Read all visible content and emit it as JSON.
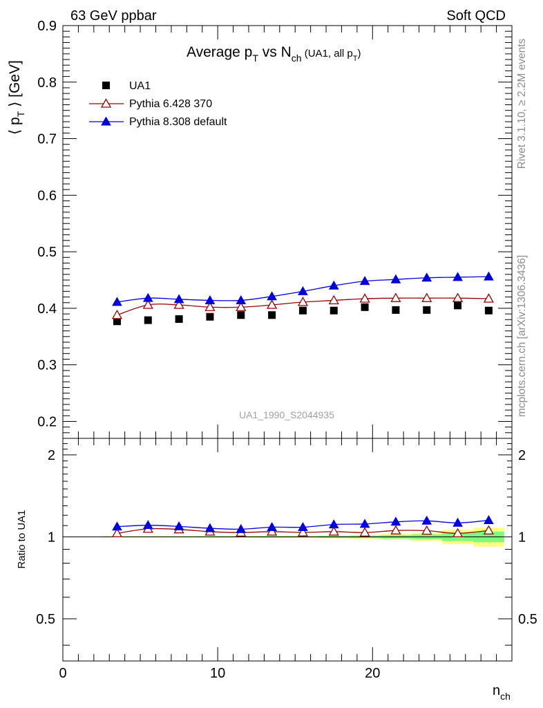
{
  "header": {
    "left": "63 GeV ppbar",
    "right": "Soft QCD"
  },
  "side_labels": {
    "rivet": "Rivet 3.1.10, ≥ 2.2M events",
    "mcplots": "mcplots.cern.ch [arXiv:1306.3436]"
  },
  "watermark": "UA1_1990_S2044935",
  "chart_data": [
    {
      "type": "line",
      "title": {
        "main": "Average p",
        "main_sub": "T",
        "mid": " vs N",
        "mid_sub": "ch",
        "paren": " (UA1, all p",
        "paren_sub": "T",
        "paren_end": ")"
      },
      "ylabel": {
        "left": "⟨ p",
        "sub": "T",
        "right": " ⟩ [GeV]"
      },
      "ylim": [
        0.17,
        0.9
      ],
      "xlim": [
        0,
        29
      ],
      "yticks": [
        "0.2",
        "0.3",
        "0.4",
        "0.5",
        "0.6",
        "0.7",
        "0.8",
        "0.9"
      ],
      "legend_position": "top-left",
      "x": [
        3.5,
        5.5,
        7.5,
        9.5,
        11.5,
        13.5,
        15.5,
        17.5,
        19.5,
        21.5,
        23.5,
        25.5,
        27.5
      ],
      "series": [
        {
          "name": "UA1",
          "marker": "square",
          "color": "#000000",
          "values": [
            0.377,
            0.379,
            0.381,
            0.385,
            0.388,
            0.388,
            0.396,
            0.396,
            0.402,
            0.397,
            0.397,
            0.405,
            0.396
          ]
        },
        {
          "name": "Pythia 6.428 370",
          "marker": "open-triangle",
          "color": "#990000",
          "values": [
            0.388,
            0.406,
            0.406,
            0.402,
            0.402,
            0.406,
            0.411,
            0.414,
            0.417,
            0.418,
            0.418,
            0.418,
            0.417
          ]
        },
        {
          "name": "Pythia 8.308 default",
          "marker": "filled-triangle",
          "color": "#0000dd",
          "values": [
            0.411,
            0.418,
            0.416,
            0.414,
            0.414,
            0.421,
            0.43,
            0.44,
            0.448,
            0.451,
            0.454,
            0.455,
            0.456
          ]
        }
      ]
    },
    {
      "type": "line",
      "ylabel": "Ratio to UA1",
      "xlabel": "n",
      "xlabel_sub": "ch",
      "ylim": [
        0.35,
        2.3
      ],
      "xlim": [
        0,
        29
      ],
      "yticks_left": [
        "0.5",
        "1",
        "2"
      ],
      "yticks_right": [
        "0.5",
        "1",
        "2"
      ],
      "xticks": [
        "0",
        "10",
        "20"
      ],
      "x": [
        3.5,
        5.5,
        7.5,
        9.5,
        11.5,
        13.5,
        15.5,
        17.5,
        19.5,
        21.5,
        23.5,
        25.5,
        27.5
      ],
      "uncertainty_bands": {
        "x_edges": [
          2.5,
          4.5,
          6.5,
          8.5,
          10.5,
          12.5,
          14.5,
          16.5,
          18.5,
          20.5,
          22.5,
          24.5,
          26.5,
          28.5
        ],
        "green_halfwidth": [
          0.004,
          0.004,
          0.004,
          0.005,
          0.005,
          0.006,
          0.006,
          0.008,
          0.01,
          0.015,
          0.02,
          0.035,
          0.045
        ],
        "yellow_halfwidth": [
          0.006,
          0.006,
          0.006,
          0.007,
          0.008,
          0.009,
          0.01,
          0.012,
          0.016,
          0.025,
          0.035,
          0.06,
          0.08
        ],
        "green_color": "#7ff97f",
        "yellow_color": "#ffff80"
      },
      "series": [
        {
          "name": "Pythia 6.428 370",
          "marker": "open-triangle",
          "color": "#990000",
          "values": [
            1.03,
            1.07,
            1.065,
            1.045,
            1.037,
            1.045,
            1.038,
            1.045,
            1.037,
            1.055,
            1.053,
            1.03,
            1.055
          ]
        },
        {
          "name": "Pythia 8.308 default",
          "marker": "filled-triangle",
          "color": "#0000dd",
          "values": [
            1.09,
            1.103,
            1.092,
            1.075,
            1.067,
            1.085,
            1.085,
            1.11,
            1.115,
            1.135,
            1.145,
            1.125,
            1.15
          ]
        }
      ]
    }
  ]
}
